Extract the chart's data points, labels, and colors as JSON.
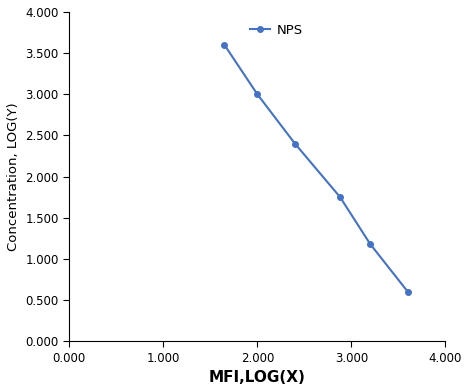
{
  "x": [
    1.65,
    2.0,
    2.4,
    2.88,
    3.2,
    3.6
  ],
  "y": [
    3.6,
    3.0,
    2.4,
    1.75,
    1.18,
    0.6
  ],
  "line_color": "#4472C4",
  "marker": "o",
  "marker_size": 4,
  "line_width": 1.5,
  "legend_label": "NPS",
  "xlabel": "MFI,LOG(X)",
  "ylabel": "Concentration, LOG(Y)",
  "xlim": [
    0.0,
    4.0
  ],
  "ylim": [
    0.0,
    4.0
  ],
  "xticks": [
    0.0,
    1.0,
    2.0,
    3.0,
    4.0
  ],
  "yticks": [
    0.0,
    0.5,
    1.0,
    1.5,
    2.0,
    2.5,
    3.0,
    3.5,
    4.0
  ],
  "xlabel_fontsize": 11,
  "ylabel_fontsize": 9.5,
  "tick_fontsize": 8.5,
  "legend_fontsize": 9.5,
  "background_color": "#ffffff"
}
